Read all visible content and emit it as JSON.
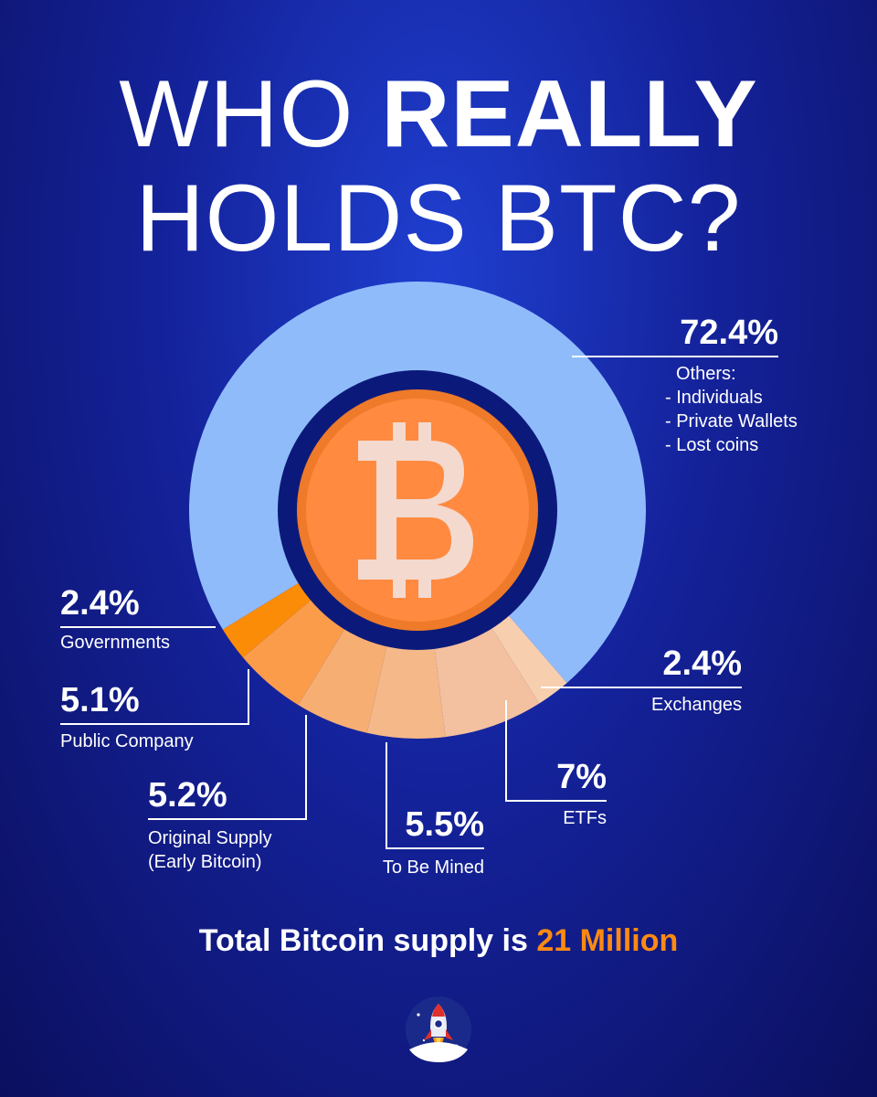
{
  "title": {
    "line1_light": "WHO ",
    "line1_bold": "REALLY",
    "line2": "HOLDS BTC?"
  },
  "chart_data": {
    "type": "pie",
    "donut": true,
    "center_icon": "bitcoin-icon",
    "slices": [
      {
        "label": "Others",
        "value": 72.4,
        "value_label": "72.4%",
        "color": "#90bbfb",
        "details": [
          "Others:",
          "- Individuals",
          "- Private Wallets",
          "- Lost coins"
        ]
      },
      {
        "label": "Exchanges",
        "value": 2.4,
        "value_label": "2.4%",
        "color": "#f8cfae"
      },
      {
        "label": "ETFs",
        "value": 7,
        "value_label": "7%",
        "color": "#f3c0a0"
      },
      {
        "label": "To Be Mined",
        "value": 5.5,
        "value_label": "5.5%",
        "color": "#f5b888"
      },
      {
        "label": "Original Supply (Early Bitcoin)",
        "value": 5.2,
        "value_label": "5.2%",
        "color": "#f7ae72",
        "details": [
          "Original Supply",
          "(Early Bitcoin)"
        ]
      },
      {
        "label": "Public Company",
        "value": 5.1,
        "value_label": "5.1%",
        "color": "#fa9c4a"
      },
      {
        "label": "Governments",
        "value": 2.4,
        "value_label": "2.4%",
        "color": "#fb8c08"
      }
    ],
    "colors": {
      "ring_inner": "#0b1a7a",
      "coin_outer": "#ee7a2a",
      "coin_inner": "#ff8a40",
      "coin_symbol": "#f4d9cf"
    }
  },
  "footer": {
    "text": "Total Bitcoin supply is ",
    "highlight": "21 Million"
  },
  "logo": {
    "icon": "rocket-icon"
  }
}
